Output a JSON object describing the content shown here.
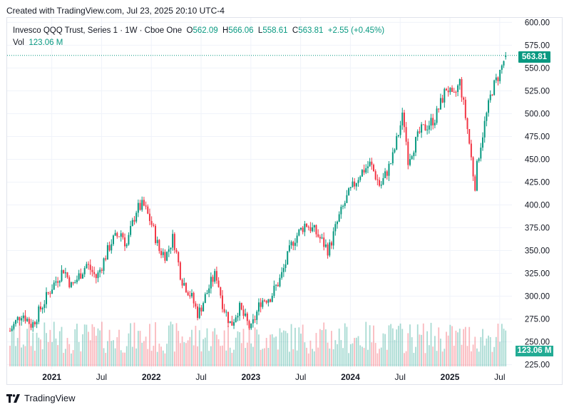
{
  "header": {
    "created_text": "Created with TradingView.com, Jul 23, 2025 20:10 UTC-4"
  },
  "legend": {
    "symbol": "Invesco QQQ Trust, Series 1 · 1W · Cboe One",
    "open_label": "O",
    "open": "562.09",
    "high_label": "H",
    "high": "566.06",
    "low_label": "L",
    "low": "558.61",
    "close_label": "C",
    "close": "563.81",
    "change": "+2.55 (+0.45%)",
    "vol_label": "Vol",
    "vol": "123.06 M"
  },
  "badges": {
    "last_price": "563.81",
    "last_volume": "123.06 M"
  },
  "footer": {
    "brand": "TradingView"
  },
  "colors": {
    "up": "#089981",
    "down": "#f23645",
    "grid": "#f0f3fa",
    "text": "#131722"
  },
  "chart_data": {
    "type": "candlestick",
    "symbol": "QQQ",
    "interval": "1W",
    "y_axis_ticks": [
      600,
      575,
      550,
      525,
      500,
      475,
      450,
      425,
      400,
      375,
      350,
      325,
      300,
      275,
      250,
      225
    ],
    "y_range": [
      220,
      605
    ],
    "x_axis_labels": [
      {
        "label": "2021",
        "bold": true,
        "t": 2021.0
      },
      {
        "label": "Jul",
        "bold": false,
        "t": 2021.5
      },
      {
        "label": "2022",
        "bold": true,
        "t": 2022.0
      },
      {
        "label": "Jul",
        "bold": false,
        "t": 2022.5
      },
      {
        "label": "2023",
        "bold": true,
        "t": 2023.0
      },
      {
        "label": "Jul",
        "bold": false,
        "t": 2023.5
      },
      {
        "label": "2024",
        "bold": true,
        "t": 2024.0
      },
      {
        "label": "Jul",
        "bold": false,
        "t": 2024.5
      },
      {
        "label": "2025",
        "bold": true,
        "t": 2025.0
      },
      {
        "label": "Jul",
        "bold": false,
        "t": 2025.5
      }
    ],
    "x_range": [
      2020.58,
      2025.58
    ],
    "close_path_anchors": [
      {
        "t": 2020.58,
        "close": 262
      },
      {
        "t": 2020.7,
        "close": 282
      },
      {
        "t": 2020.8,
        "close": 268
      },
      {
        "t": 2021.0,
        "close": 310
      },
      {
        "t": 2021.12,
        "close": 330
      },
      {
        "t": 2021.2,
        "close": 310
      },
      {
        "t": 2021.35,
        "close": 335
      },
      {
        "t": 2021.45,
        "close": 320
      },
      {
        "t": 2021.6,
        "close": 360
      },
      {
        "t": 2021.7,
        "close": 370
      },
      {
        "t": 2021.75,
        "close": 355
      },
      {
        "t": 2021.85,
        "close": 395
      },
      {
        "t": 2021.92,
        "close": 400
      },
      {
        "t": 2022.0,
        "close": 380
      },
      {
        "t": 2022.08,
        "close": 350
      },
      {
        "t": 2022.15,
        "close": 345
      },
      {
        "t": 2022.22,
        "close": 365
      },
      {
        "t": 2022.3,
        "close": 320
      },
      {
        "t": 2022.4,
        "close": 300
      },
      {
        "t": 2022.47,
        "close": 280
      },
      {
        "t": 2022.6,
        "close": 315
      },
      {
        "t": 2022.65,
        "close": 325
      },
      {
        "t": 2022.72,
        "close": 290
      },
      {
        "t": 2022.8,
        "close": 268
      },
      {
        "t": 2022.88,
        "close": 288
      },
      {
        "t": 2023.0,
        "close": 263
      },
      {
        "t": 2023.1,
        "close": 295
      },
      {
        "t": 2023.2,
        "close": 300
      },
      {
        "t": 2023.3,
        "close": 320
      },
      {
        "t": 2023.42,
        "close": 360
      },
      {
        "t": 2023.55,
        "close": 380
      },
      {
        "t": 2023.65,
        "close": 370
      },
      {
        "t": 2023.78,
        "close": 350
      },
      {
        "t": 2023.88,
        "close": 385
      },
      {
        "t": 2023.97,
        "close": 409
      },
      {
        "t": 2024.1,
        "close": 435
      },
      {
        "t": 2024.2,
        "close": 445
      },
      {
        "t": 2024.3,
        "close": 420
      },
      {
        "t": 2024.42,
        "close": 450
      },
      {
        "t": 2024.53,
        "close": 500
      },
      {
        "t": 2024.58,
        "close": 450
      },
      {
        "t": 2024.7,
        "close": 480
      },
      {
        "t": 2024.85,
        "close": 495
      },
      {
        "t": 2024.97,
        "close": 530
      },
      {
        "t": 2025.03,
        "close": 515
      },
      {
        "t": 2025.1,
        "close": 535
      },
      {
        "t": 2025.18,
        "close": 480
      },
      {
        "t": 2025.25,
        "close": 420
      },
      {
        "t": 2025.28,
        "close": 450
      },
      {
        "t": 2025.35,
        "close": 490
      },
      {
        "t": 2025.42,
        "close": 525
      },
      {
        "t": 2025.5,
        "close": 545
      },
      {
        "t": 2025.56,
        "close": 563.81
      }
    ],
    "last_candle": {
      "open": 562.09,
      "high": 566.06,
      "low": 558.61,
      "close": 563.81,
      "volume_m": 123.06
    }
  }
}
